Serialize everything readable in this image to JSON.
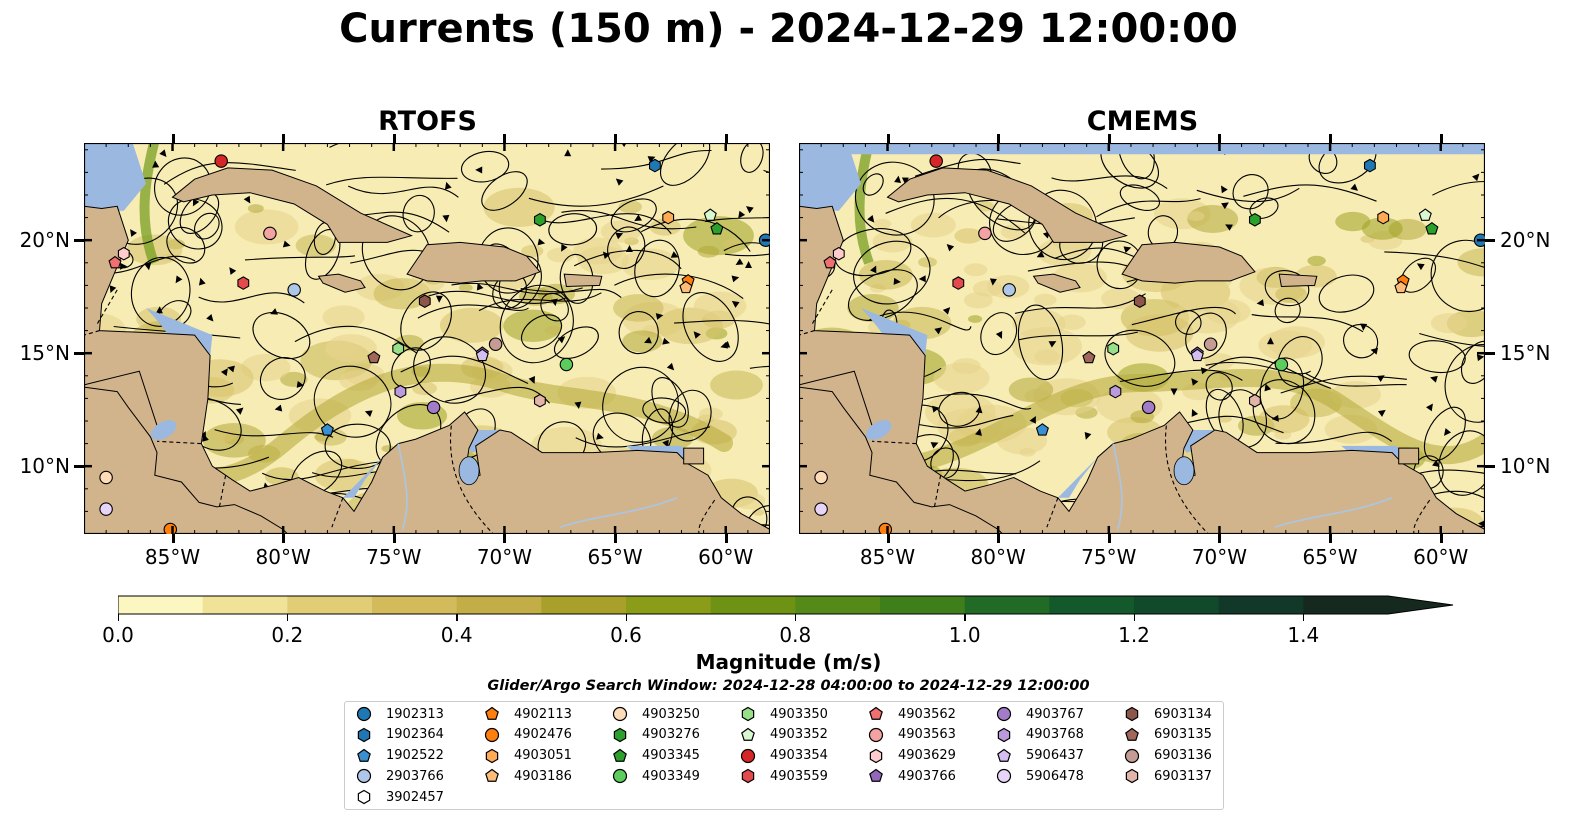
{
  "title": "Currents (150 m) - 2024-12-29 12:00:00",
  "panels": [
    {
      "title": "RTOFS"
    },
    {
      "title": "CMEMS"
    }
  ],
  "map": {
    "lon_range": [
      -89,
      -58
    ],
    "lat_range": [
      7,
      24.3
    ],
    "lon_ticks": [
      "85°W",
      "80°W",
      "75°W",
      "70°W",
      "65°W",
      "60°W"
    ],
    "lat_ticks": [
      "20°N",
      "15°N",
      "10°N"
    ],
    "colors": {
      "ocean": "#9ab8e0",
      "land": "#d2b48c",
      "river": "#a9c6e6"
    }
  },
  "colorbar": {
    "label": "Magnitude (m/s)",
    "ticks": [
      "0.0",
      "0.2",
      "0.4",
      "0.6",
      "0.8",
      "1.0",
      "1.2",
      "1.4"
    ],
    "range": [
      0,
      1.5
    ],
    "extend": "max",
    "colors": [
      "#fcf7c0",
      "#f0e296",
      "#e1cd76",
      "#d3bb5c",
      "#c3ad46",
      "#a9a02c",
      "#8a9c18",
      "#6e9314",
      "#558a18",
      "#3e7f1c",
      "#226b26",
      "#14592c",
      "#114a2b",
      "#12382a",
      "#16291f"
    ]
  },
  "search_window": "Glider/Argo Search Window: 2024-12-28 04:00:00 to 2024-12-29 12:00:00",
  "legend": [
    {
      "id": "1902313",
      "marker": "circle",
      "color": "#1f77b4"
    },
    {
      "id": "1902364",
      "marker": "hexagon",
      "color": "#1f77b4"
    },
    {
      "id": "1902522",
      "marker": "pentagon",
      "color": "#3a8fd0"
    },
    {
      "id": "2903766",
      "marker": "circle",
      "color": "#aec7e8"
    },
    {
      "id": "3902457",
      "marker": "hexagon",
      "color": "#ffffff"
    },
    {
      "id": "4902113",
      "marker": "pentagon",
      "color": "#ff7f0e"
    },
    {
      "id": "4902476",
      "marker": "circle",
      "color": "#ff7f0e"
    },
    {
      "id": "4903051",
      "marker": "hexagon",
      "color": "#ffaa55"
    },
    {
      "id": "4903186",
      "marker": "pentagon",
      "color": "#ffbb78"
    },
    {
      "id": "4903250",
      "marker": "circle",
      "color": "#ffdcb8"
    },
    {
      "id": "4903276",
      "marker": "hexagon",
      "color": "#2ca02c"
    },
    {
      "id": "4903345",
      "marker": "pentagon",
      "color": "#2ca02c"
    },
    {
      "id": "4903349",
      "marker": "circle",
      "color": "#5ccc5c"
    },
    {
      "id": "4903350",
      "marker": "hexagon",
      "color": "#98df8a"
    },
    {
      "id": "4903352",
      "marker": "pentagon",
      "color": "#d8f8d0"
    },
    {
      "id": "4903354",
      "marker": "circle",
      "color": "#d62728"
    },
    {
      "id": "4903559",
      "marker": "hexagon",
      "color": "#e34a4b"
    },
    {
      "id": "4903562",
      "marker": "pentagon",
      "color": "#f06f70"
    },
    {
      "id": "4903563",
      "marker": "circle",
      "color": "#f4a3a3"
    },
    {
      "id": "4903629",
      "marker": "hexagon",
      "color": "#ffcccc"
    },
    {
      "id": "4903766",
      "marker": "pentagon",
      "color": "#9467bd"
    },
    {
      "id": "4903767",
      "marker": "circle",
      "color": "#a27cc8"
    },
    {
      "id": "4903768",
      "marker": "hexagon",
      "color": "#bb99dd"
    },
    {
      "id": "5906437",
      "marker": "pentagon",
      "color": "#d4bff0"
    },
    {
      "id": "5906478",
      "marker": "circle",
      "color": "#e6d5f8"
    },
    {
      "id": "6903134",
      "marker": "hexagon",
      "color": "#8c564b"
    },
    {
      "id": "6903135",
      "marker": "pentagon",
      "color": "#a0675a"
    },
    {
      "id": "6903136",
      "marker": "circle",
      "color": "#c49c94"
    },
    {
      "id": "6903137",
      "marker": "hexagon",
      "color": "#e2b4aa"
    }
  ],
  "chart_data": {
    "type": "scatter",
    "title": "Currents (150 m) - 2024-12-29 12:00:00",
    "subplots": [
      "RTOFS",
      "CMEMS"
    ],
    "x_axis": "longitude",
    "y_axis": "latitude",
    "xlim": [
      -89,
      -58
    ],
    "ylim": [
      7,
      24.3
    ],
    "colorbar_label": "Magnitude (m/s)",
    "colorbar_range": [
      0,
      1.5
    ],
    "series": [
      {
        "name": "1902313",
        "x": [
          -58.2
        ],
        "y": [
          20.0
        ]
      },
      {
        "name": "1902364",
        "x": [
          -63.2
        ],
        "y": [
          23.3
        ]
      },
      {
        "name": "1902522",
        "x": [
          -78.0
        ],
        "y": [
          11.6
        ]
      },
      {
        "name": "2903766",
        "x": [
          -79.5
        ],
        "y": [
          17.8
        ]
      },
      {
        "name": "4902113",
        "x": [
          -61.7
        ],
        "y": [
          18.2
        ]
      },
      {
        "name": "4902476",
        "x": [
          -85.1
        ],
        "y": [
          7.2
        ]
      },
      {
        "name": "4903051",
        "x": [
          -62.6
        ],
        "y": [
          21.0
        ]
      },
      {
        "name": "4903186",
        "x": [
          -61.8
        ],
        "y": [
          17.9
        ]
      },
      {
        "name": "4903250",
        "x": [
          -88.0
        ],
        "y": [
          9.5
        ]
      },
      {
        "name": "4903276",
        "x": [
          -68.4
        ],
        "y": [
          20.9
        ]
      },
      {
        "name": "4903345",
        "x": [
          -60.4
        ],
        "y": [
          20.5
        ]
      },
      {
        "name": "4903349",
        "x": [
          -67.2
        ],
        "y": [
          14.5
        ]
      },
      {
        "name": "4903350",
        "x": [
          -74.8
        ],
        "y": [
          15.2
        ]
      },
      {
        "name": "4903352",
        "x": [
          -60.7
        ],
        "y": [
          21.1
        ]
      },
      {
        "name": "4903354",
        "x": [
          -82.8
        ],
        "y": [
          23.5
        ]
      },
      {
        "name": "4903559",
        "x": [
          -81.8
        ],
        "y": [
          18.1
        ]
      },
      {
        "name": "4903562",
        "x": [
          -87.6
        ],
        "y": [
          19.0
        ]
      },
      {
        "name": "4903563",
        "x": [
          -80.6
        ],
        "y": [
          20.3
        ]
      },
      {
        "name": "4903629",
        "x": [
          -87.2
        ],
        "y": [
          19.4
        ]
      },
      {
        "name": "4903766",
        "x": [
          -71.0
        ],
        "y": [
          15.0
        ]
      },
      {
        "name": "4903767",
        "x": [
          -73.2
        ],
        "y": [
          12.6
        ]
      },
      {
        "name": "4903768",
        "x": [
          -74.7
        ],
        "y": [
          13.3
        ]
      },
      {
        "name": "5906437",
        "x": [
          -71.0
        ],
        "y": [
          14.9
        ]
      },
      {
        "name": "5906478",
        "x": [
          -88.0
        ],
        "y": [
          8.1
        ]
      },
      {
        "name": "6903134",
        "x": [
          -73.6
        ],
        "y": [
          17.3
        ]
      },
      {
        "name": "6903135",
        "x": [
          -75.9
        ],
        "y": [
          14.8
        ]
      },
      {
        "name": "6903136",
        "x": [
          -70.4
        ],
        "y": [
          15.4
        ]
      },
      {
        "name": "6903137",
        "x": [
          -68.4
        ],
        "y": [
          12.9
        ]
      }
    ]
  }
}
